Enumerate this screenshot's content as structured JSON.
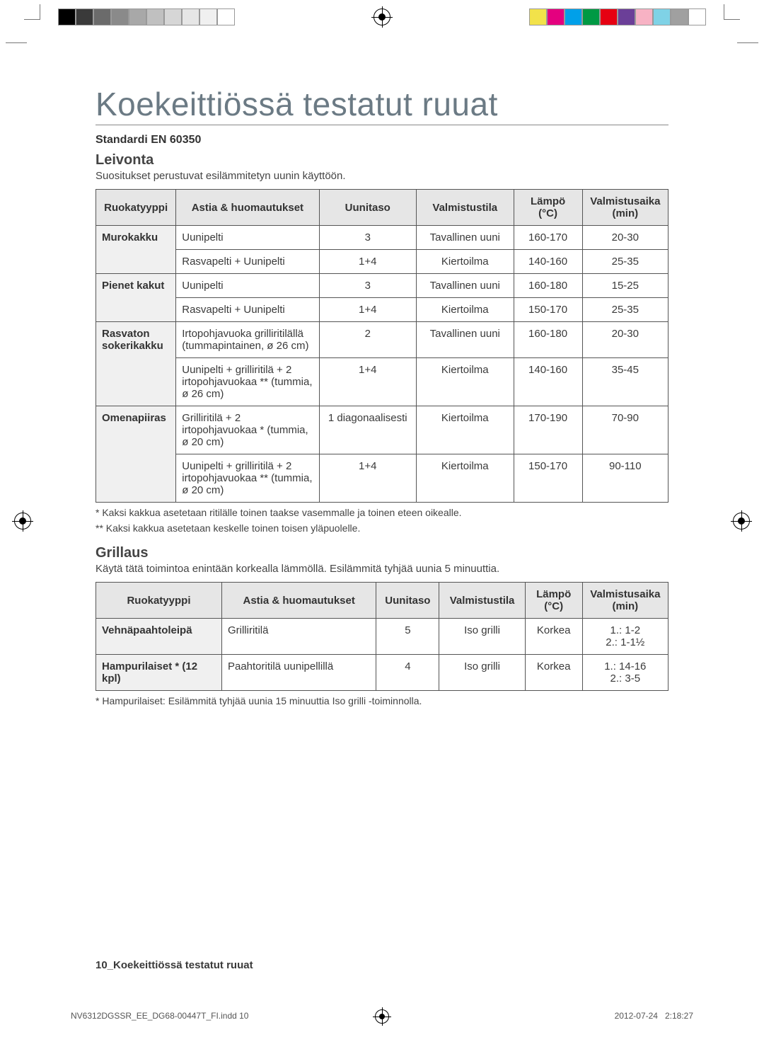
{
  "printbar_left": [
    "#000000",
    "#3a3a3a",
    "#6b6b6b",
    "#8a8a8a",
    "#a8a8a8",
    "#c0c0c0",
    "#d6d6d6",
    "#e6e6e6",
    "#f0f0f0",
    "#ffffff"
  ],
  "printbar_right": [
    "#f2e24a",
    "#e4007f",
    "#00a0e9",
    "#009944",
    "#e60012",
    "#6b3f98",
    "#f7b2c4",
    "#7fd2e6",
    "#a0a0a0",
    "#ffffff"
  ],
  "title": "Koekeittiössä testatut ruuat",
  "standard": "Standardi EN 60350",
  "baking": {
    "heading": "Leivonta",
    "sub": "Suositukset perustuvat esilämmitetyn uunin käyttöön.",
    "columns": [
      "Ruokatyyppi",
      "Astia & huomautukset",
      "Uunitaso",
      "Valmistustila",
      "Lämpö (°C)",
      "Valmistusaika (min)"
    ],
    "rows": [
      {
        "type": "Murokakku",
        "rowspan": 2,
        "dish": "Uunipelti",
        "level": "3",
        "mode": "Tavallinen uuni",
        "temp": "160-170",
        "time": "20-30"
      },
      {
        "dish": "Rasvapelti + Uunipelti",
        "level": "1+4",
        "mode": "Kiertoilma",
        "temp": "140-160",
        "time": "25-35"
      },
      {
        "type": "Pienet kakut",
        "rowspan": 2,
        "dish": "Uunipelti",
        "level": "3",
        "mode": "Tavallinen uuni",
        "temp": "160-180",
        "time": "15-25"
      },
      {
        "dish": "Rasvapelti + Uunipelti",
        "level": "1+4",
        "mode": "Kiertoilma",
        "temp": "150-170",
        "time": "25-35"
      },
      {
        "type": "Rasvaton sokerikakku",
        "rowspan": 2,
        "dish": "Irtopohjavuoka grilliritilällä (tummapintainen, ø 26 cm)",
        "level": "2",
        "mode": "Tavallinen uuni",
        "temp": "160-180",
        "time": "20-30"
      },
      {
        "dish": "Uunipelti + grilliritilä + 2 irtopohjavuokaa ** (tummia, ø 26 cm)",
        "level": "1+4",
        "mode": "Kiertoilma",
        "temp": "140-160",
        "time": "35-45"
      },
      {
        "type": "Omenapiiras",
        "rowspan": 2,
        "dish": "Grilliritilä + 2 irtopohjavuokaa * (tummia, ø 20 cm)",
        "level": "1 diagonaalisesti",
        "mode": "Kiertoilma",
        "temp": "170-190",
        "time": "70-90"
      },
      {
        "dish": "Uunipelti + grilliritilä + 2 irtopohjavuokaa ** (tummia, ø 20 cm)",
        "level": "1+4",
        "mode": "Kiertoilma",
        "temp": "150-170",
        "time": "90-110"
      }
    ],
    "notes": [
      "* Kaksi kakkua asetetaan ritilälle toinen taakse vasemmalle ja toinen eteen oikealle.",
      "** Kaksi kakkua asetetaan keskelle toinen toisen yläpuolelle."
    ]
  },
  "grilling": {
    "heading": "Grillaus",
    "sub": "Käytä tätä toimintoa enintään korkealla lämmöllä. Esilämmitä tyhjää uunia 5 minuuttia.",
    "columns": [
      "Ruokatyyppi",
      "Astia & huomautukset",
      "Uunitaso",
      "Valmistustila",
      "Lämpö (°C)",
      "Valmistusaika (min)"
    ],
    "rows": [
      {
        "type": "Vehnäpaahtoleipä",
        "dish": "Grilliritilä",
        "level": "5",
        "mode": "Iso grilli",
        "temp": "Korkea",
        "time": "1.: 1-2\n2.: 1-1½"
      },
      {
        "type": "Hampurilaiset * (12 kpl)",
        "dish": "Paahtoritilä uunipellillä",
        "level": "4",
        "mode": "Iso grilli",
        "temp": "Korkea",
        "time": "1.: 14-16\n2.: 3-5"
      }
    ],
    "note": "* Hampurilaiset: Esilämmitä tyhjää uunia 15 minuuttia Iso grilli -toiminnolla."
  },
  "footer_page": "10_",
  "footer_text": "Koekeittiössä testatut ruuat",
  "imprint_left": "NV6312DGSSR_EE_DG68-00447T_FI.indd   10",
  "imprint_right": "2012-07-24     2:18:27"
}
